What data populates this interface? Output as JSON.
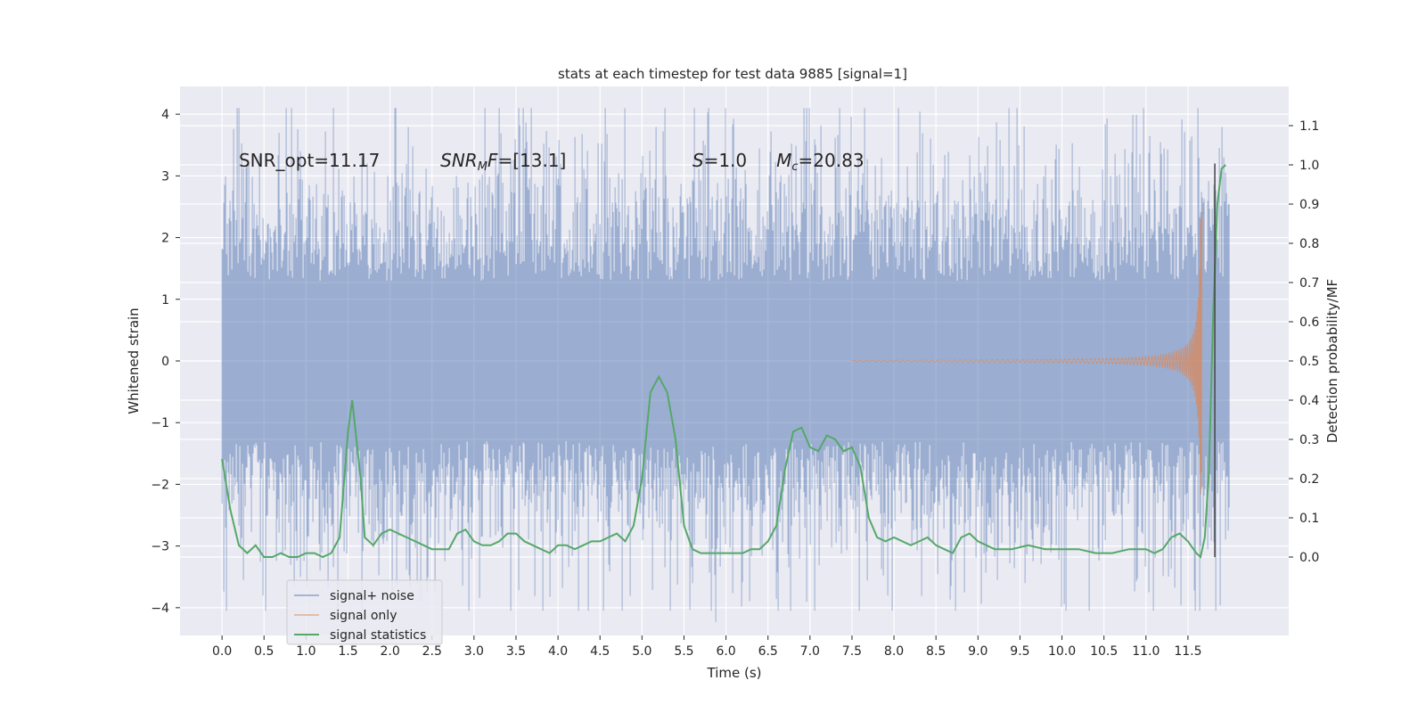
{
  "chart_data": {
    "type": "line",
    "title": "stats at each timestep for test data 9885 [signal=1]",
    "xlabel": "Time (s)",
    "ylabel": "Whitened strain",
    "y2label": "Detection probability/MF",
    "xlim": [
      -0.5,
      12.7
    ],
    "ylim": [
      -4.45,
      4.45
    ],
    "y2lim": [
      -0.2,
      1.2
    ],
    "x_ticks": [
      0.0,
      0.5,
      1.0,
      1.5,
      2.0,
      2.5,
      3.0,
      3.5,
      4.0,
      4.5,
      5.0,
      5.5,
      6.0,
      6.5,
      7.0,
      7.5,
      8.0,
      8.5,
      9.0,
      9.5,
      10.0,
      10.5,
      11.0,
      11.5
    ],
    "x_tick_labels": [
      "0.0",
      "0.5",
      "1.0",
      "1.5",
      "2.0",
      "2.5",
      "3.0",
      "3.5",
      "4.0",
      "4.5",
      "5.0",
      "5.5",
      "6.0",
      "6.5",
      "7.0",
      "7.5",
      "8.0",
      "8.5",
      "9.0",
      "9.5",
      "10.0",
      "10.5",
      "11.0",
      "11.5"
    ],
    "y_ticks": [
      4,
      3,
      2,
      1,
      0,
      -1,
      -2,
      -3,
      -4
    ],
    "y_tick_labels": [
      "4",
      "3",
      "2",
      "1",
      "0",
      "−1",
      "−2",
      "−3",
      "−4"
    ],
    "y2_ticks": [
      1.1,
      1.0,
      0.9,
      0.8,
      0.7,
      0.6,
      0.5,
      0.4,
      0.3,
      0.2,
      0.1,
      0.0
    ],
    "y2_tick_labels": [
      "1.1",
      "1.0",
      "0.9",
      "0.8",
      "0.7",
      "0.6",
      "0.5",
      "0.4",
      "0.3",
      "0.2",
      "0.1",
      "0.0"
    ],
    "grid": true,
    "legend_position": "lower-left",
    "annotations": [
      {
        "text": "SNR_opt=11.17",
        "x": 0.2,
        "y": 3.25
      },
      {
        "parts": [
          {
            "t": "SNR",
            "i": true
          },
          {
            "t": "M",
            "i": true,
            "sub": true
          },
          {
            "t": "F",
            "i": true
          },
          {
            "t": "=[13.1]",
            "i": false
          }
        ],
        "x": 2.6,
        "y": 3.25
      },
      {
        "parts": [
          {
            "t": "S",
            "i": true
          },
          {
            "t": "=1.0",
            "i": false
          }
        ],
        "x": 5.6,
        "y": 3.25
      },
      {
        "parts": [
          {
            "t": "M",
            "i": true
          },
          {
            "t": "c",
            "i": true,
            "sub": true
          },
          {
            "t": "=20.83",
            "i": false
          }
        ],
        "x": 6.6,
        "y": 3.25
      }
    ],
    "vertical_marker": {
      "x": 11.82,
      "y_range": [
        -3.18,
        3.2
      ]
    },
    "series": [
      {
        "name": "signal+ noise",
        "color": "#4c72b0",
        "axis": "left",
        "x_range": [
          0.0,
          12.0
        ],
        "envelope": {
          "typical_abs": 1.3,
          "peak_max": 4.1,
          "peak_min": -4.05
        }
      },
      {
        "name": "signal only",
        "color": "#dd8452",
        "axis": "left",
        "chirp": {
          "start_x": 7.5,
          "peak_x": 11.65,
          "end_x": 11.7,
          "peak_amplitude": 2.4
        }
      },
      {
        "name": "signal statistics",
        "color": "#55a868",
        "axis": "right",
        "x": [
          0.0,
          0.1,
          0.2,
          0.3,
          0.4,
          0.5,
          0.6,
          0.7,
          0.8,
          0.9,
          1.0,
          1.1,
          1.2,
          1.3,
          1.4,
          1.5,
          1.55,
          1.6,
          1.65,
          1.7,
          1.8,
          1.9,
          2.0,
          2.1,
          2.2,
          2.3,
          2.4,
          2.5,
          2.6,
          2.7,
          2.8,
          2.9,
          3.0,
          3.1,
          3.2,
          3.3,
          3.4,
          3.5,
          3.6,
          3.7,
          3.8,
          3.9,
          4.0,
          4.1,
          4.2,
          4.3,
          4.4,
          4.5,
          4.6,
          4.7,
          4.8,
          4.9,
          5.0,
          5.1,
          5.2,
          5.3,
          5.4,
          5.5,
          5.6,
          5.7,
          5.8,
          5.9,
          6.0,
          6.1,
          6.2,
          6.3,
          6.4,
          6.5,
          6.6,
          6.7,
          6.8,
          6.9,
          7.0,
          7.1,
          7.2,
          7.3,
          7.4,
          7.5,
          7.6,
          7.7,
          7.8,
          7.9,
          8.0,
          8.1,
          8.2,
          8.3,
          8.4,
          8.5,
          8.6,
          8.7,
          8.8,
          8.9,
          9.0,
          9.2,
          9.4,
          9.6,
          9.8,
          10.0,
          10.2,
          10.4,
          10.6,
          10.8,
          11.0,
          11.1,
          11.2,
          11.3,
          11.4,
          11.5,
          11.6,
          11.65,
          11.7,
          11.75,
          11.8,
          11.85,
          11.9,
          11.95
        ],
        "values": [
          0.25,
          0.12,
          0.03,
          0.01,
          0.03,
          0.0,
          0.0,
          0.01,
          0.0,
          0.0,
          0.01,
          0.01,
          0.0,
          0.01,
          0.05,
          0.32,
          0.4,
          0.3,
          0.2,
          0.05,
          0.03,
          0.06,
          0.07,
          0.06,
          0.05,
          0.04,
          0.03,
          0.02,
          0.02,
          0.02,
          0.06,
          0.07,
          0.04,
          0.03,
          0.03,
          0.04,
          0.06,
          0.06,
          0.04,
          0.03,
          0.02,
          0.01,
          0.03,
          0.03,
          0.02,
          0.03,
          0.04,
          0.04,
          0.05,
          0.06,
          0.04,
          0.08,
          0.2,
          0.42,
          0.46,
          0.42,
          0.3,
          0.08,
          0.02,
          0.01,
          0.01,
          0.01,
          0.01,
          0.01,
          0.01,
          0.02,
          0.02,
          0.04,
          0.08,
          0.22,
          0.32,
          0.33,
          0.28,
          0.27,
          0.31,
          0.3,
          0.27,
          0.28,
          0.23,
          0.1,
          0.05,
          0.04,
          0.05,
          0.04,
          0.03,
          0.04,
          0.05,
          0.03,
          0.02,
          0.01,
          0.05,
          0.06,
          0.04,
          0.02,
          0.02,
          0.03,
          0.02,
          0.02,
          0.02,
          0.01,
          0.01,
          0.02,
          0.02,
          0.01,
          0.02,
          0.05,
          0.06,
          0.04,
          0.01,
          0.0,
          0.05,
          0.22,
          0.62,
          0.9,
          0.99,
          1.0
        ]
      }
    ]
  }
}
